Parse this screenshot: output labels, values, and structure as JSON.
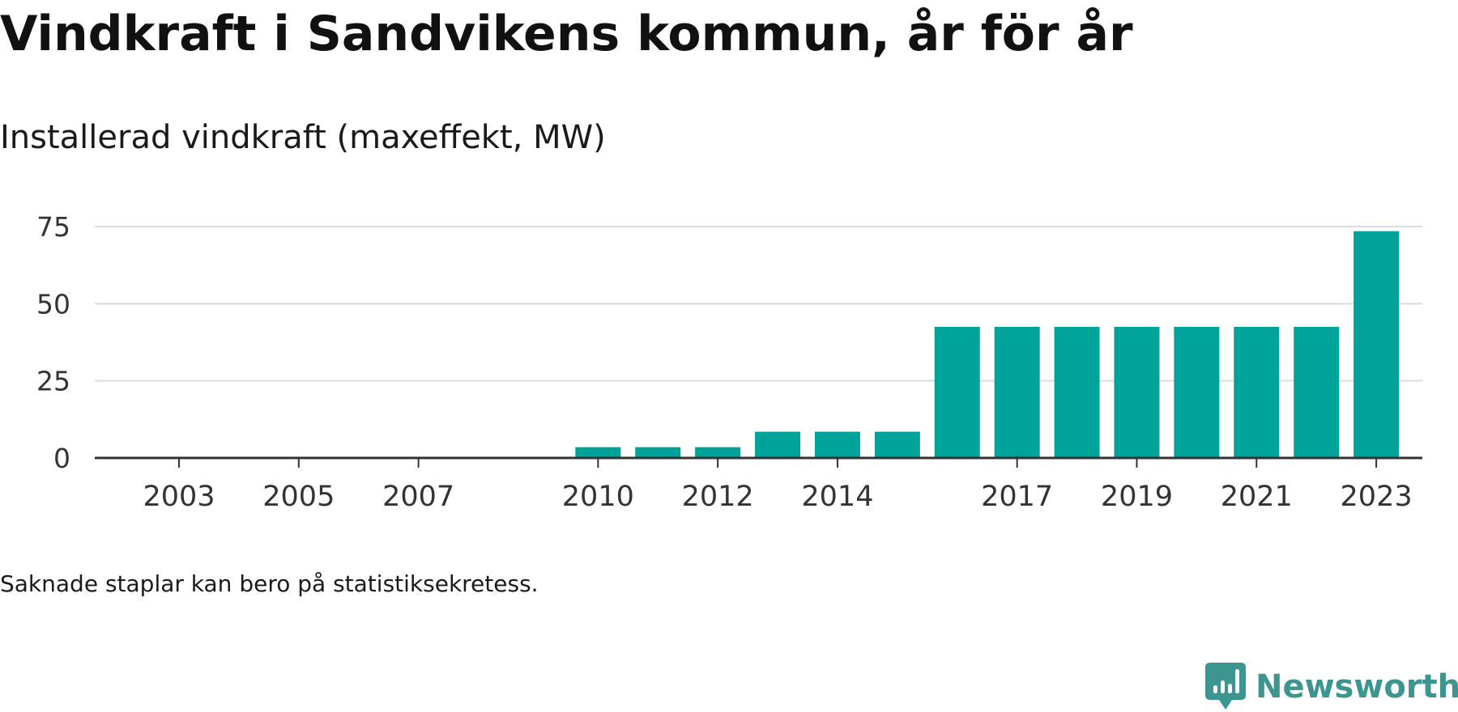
{
  "title": "Vindkraft i Sandvikens kommun, år för år",
  "subtitle": "Installerad vindkraft (maxeffekt, MW)",
  "footnote": "Saknade staplar kan bero på statistiksekretess.",
  "brand": {
    "name": "Newsworthy",
    "icon": "newsworthy-logo-icon",
    "color": "#3c968f"
  },
  "chart_data": {
    "type": "bar",
    "title": "Vindkraft i Sandvikens kommun, år för år",
    "subtitle": "Installerad vindkraft (maxeffekt, MW)",
    "xlabel": "",
    "ylabel": "",
    "x_range": [
      2002,
      2024
    ],
    "ylim": [
      0,
      75
    ],
    "y_ticks": [
      0,
      25,
      50,
      75
    ],
    "x_tick_labels": [
      "2003",
      "2005",
      "2007",
      "2010",
      "2012",
      "2014",
      "2017",
      "2019",
      "2021",
      "2023"
    ],
    "grid": true,
    "legend": "none",
    "bar_color": "#00a39a",
    "grid_color": "#dcdcdc",
    "axis_color": "#333333",
    "bars": [
      {
        "year": 2010,
        "value": 3.5
      },
      {
        "year": 2011,
        "value": 3.5
      },
      {
        "year": 2012,
        "value": 3.5
      },
      {
        "year": 2013,
        "value": 8.5
      },
      {
        "year": 2014,
        "value": 8.5
      },
      {
        "year": 2015,
        "value": 8.5
      },
      {
        "year": 2016,
        "value": 42.5
      },
      {
        "year": 2017,
        "value": 42.5
      },
      {
        "year": 2018,
        "value": 42.5
      },
      {
        "year": 2019,
        "value": 42.5
      },
      {
        "year": 2020,
        "value": 42.5
      },
      {
        "year": 2021,
        "value": 42.5
      },
      {
        "year": 2022,
        "value": 42.5
      },
      {
        "year": 2023,
        "value": 73.5
      }
    ]
  }
}
